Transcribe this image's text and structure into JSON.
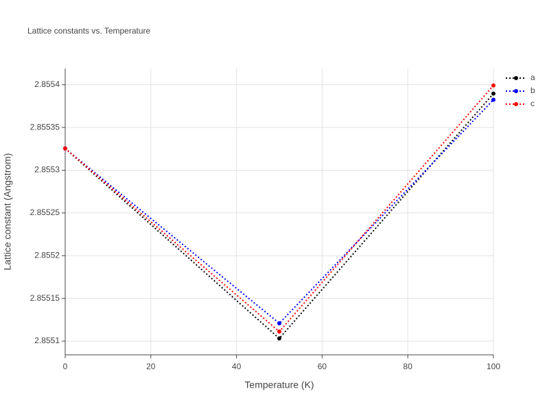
{
  "chart_data": {
    "type": "line",
    "title": "Lattice constants vs. Temperature",
    "x_label": "Temperature (K)",
    "y_label": "Lattice constant (Angstrom)",
    "x": [
      0,
      50,
      100
    ],
    "series": [
      {
        "name": "a",
        "color": "#000000",
        "values": [
          2.8553254,
          2.8551032,
          2.8553896
        ]
      },
      {
        "name": "b",
        "color": "#0000ff",
        "values": [
          2.8553254,
          2.8551209,
          2.8553824
        ]
      },
      {
        "name": "c",
        "color": "#ff0000",
        "values": [
          2.8553254,
          2.8551112,
          2.8553992
        ]
      }
    ],
    "xlim": [
      0,
      100
    ],
    "xticks": [
      0,
      20,
      40,
      60,
      80,
      100
    ],
    "ylim": [
      2.855084,
      2.855419
    ],
    "yticks": [
      2.8551,
      2.85515,
      2.8552,
      2.85525,
      2.8553,
      2.85535,
      2.8554
    ],
    "grid": true,
    "legend": "right"
  }
}
